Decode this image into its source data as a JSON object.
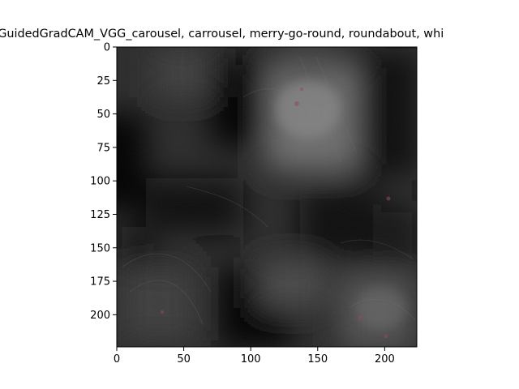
{
  "figure": {
    "title": "_GuidedGradCAM_VGG_carousel, carrousel, merry-go-round, roundabout, whi"
  },
  "image_panel": {
    "content": "Guided Grad-CAM heatmap overlay: dark grayscale saliency map with brighter regions near top-center and faint colored edge textures",
    "x_ticks": [
      "0",
      "50",
      "100",
      "150",
      "200"
    ],
    "y_ticks": [
      "0",
      "25",
      "50",
      "75",
      "100",
      "125",
      "150",
      "175",
      "200"
    ],
    "x_range": [
      0,
      224
    ],
    "y_range": [
      0,
      224
    ],
    "colors": {
      "background": "#ffffff",
      "axes_edge": "#000000",
      "image_dark": "#050505",
      "image_mid": "#3a3a3a",
      "image_bright": "#8a8a8a"
    }
  }
}
